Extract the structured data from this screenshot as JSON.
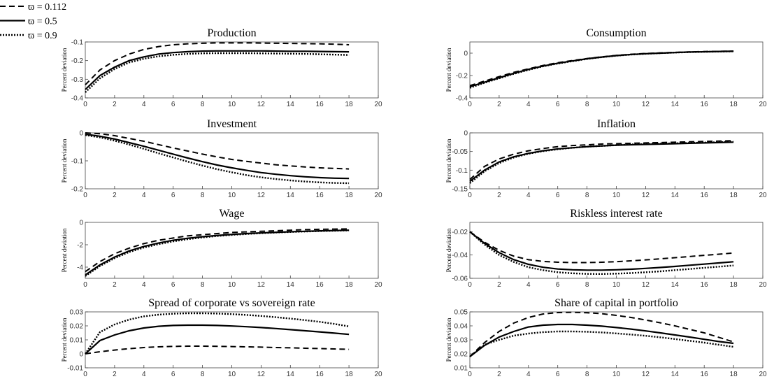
{
  "legend": [
    {
      "label": "ϖ = 0.112",
      "style": "dashed"
    },
    {
      "label": "ϖ = 0.5",
      "style": "solid"
    },
    {
      "label": "ϖ = 0.9",
      "style": "dotted"
    }
  ],
  "chart_data": [
    {
      "type": "line",
      "title": "Production",
      "y_label": "Percent deviation",
      "x": [
        0,
        1,
        2,
        3,
        4,
        5,
        6,
        7,
        8,
        9,
        10,
        11,
        12,
        13,
        14,
        15,
        16,
        17,
        18
      ],
      "xlim": [
        0,
        20
      ],
      "xticks": [
        0,
        2,
        4,
        6,
        8,
        10,
        12,
        14,
        16,
        18,
        20
      ],
      "ylim": [
        -0.4,
        -0.1
      ],
      "yticks": [
        -0.4,
        -0.3,
        -0.2,
        -0.1
      ],
      "series": [
        {
          "style": "dashed",
          "color": "#000000",
          "values": [
            -0.33,
            -0.25,
            -0.2,
            -0.165,
            -0.14,
            -0.125,
            -0.115,
            -0.11,
            -0.107,
            -0.105,
            -0.105,
            -0.105,
            -0.106,
            -0.107,
            -0.108,
            -0.109,
            -0.11,
            -0.112,
            -0.115
          ]
        },
        {
          "style": "solid",
          "color": "#000000",
          "values": [
            -0.355,
            -0.28,
            -0.235,
            -0.2,
            -0.18,
            -0.165,
            -0.157,
            -0.152,
            -0.149,
            -0.148,
            -0.148,
            -0.148,
            -0.148,
            -0.149,
            -0.15,
            -0.15,
            -0.151,
            -0.152,
            -0.153
          ]
        },
        {
          "style": "dotted",
          "color": "#000000",
          "values": [
            -0.37,
            -0.295,
            -0.245,
            -0.21,
            -0.19,
            -0.177,
            -0.169,
            -0.164,
            -0.161,
            -0.16,
            -0.16,
            -0.16,
            -0.161,
            -0.162,
            -0.163,
            -0.164,
            -0.166,
            -0.168,
            -0.17
          ]
        }
      ]
    },
    {
      "type": "line",
      "title": "Consumption",
      "y_label": "Percent deviation",
      "x": [
        0,
        1,
        2,
        3,
        4,
        5,
        6,
        7,
        8,
        9,
        10,
        11,
        12,
        13,
        14,
        15,
        16,
        17,
        18
      ],
      "xlim": [
        0,
        20
      ],
      "xticks": [
        0,
        2,
        4,
        6,
        8,
        10,
        12,
        14,
        16,
        18,
        20
      ],
      "ylim": [
        -0.4,
        0.1
      ],
      "yticks": [
        -0.4,
        -0.2,
        0
      ],
      "series": [
        {
          "style": "dashed",
          "color": "#000000",
          "values": [
            -0.29,
            -0.25,
            -0.21,
            -0.172,
            -0.14,
            -0.11,
            -0.086,
            -0.066,
            -0.048,
            -0.033,
            -0.02,
            -0.01,
            -0.003,
            0.002,
            0.007,
            0.011,
            0.014,
            0.016,
            0.018
          ]
        },
        {
          "style": "solid",
          "color": "#000000",
          "values": [
            -0.3,
            -0.26,
            -0.22,
            -0.18,
            -0.145,
            -0.115,
            -0.09,
            -0.07,
            -0.05,
            -0.035,
            -0.022,
            -0.012,
            -0.005,
            0.0,
            0.005,
            0.01,
            0.012,
            0.015,
            0.017
          ]
        },
        {
          "style": "dotted",
          "color": "#000000",
          "values": [
            -0.31,
            -0.265,
            -0.225,
            -0.185,
            -0.15,
            -0.118,
            -0.093,
            -0.072,
            -0.052,
            -0.036,
            -0.023,
            -0.013,
            -0.006,
            0.0,
            0.005,
            0.009,
            0.012,
            0.014,
            0.016
          ]
        }
      ]
    },
    {
      "type": "line",
      "title": "Investment",
      "y_label": "Percent deviation",
      "x": [
        0,
        1,
        2,
        3,
        4,
        5,
        6,
        7,
        8,
        9,
        10,
        11,
        12,
        13,
        14,
        15,
        16,
        17,
        18
      ],
      "xlim": [
        0,
        20
      ],
      "xticks": [
        0,
        2,
        4,
        6,
        8,
        10,
        12,
        14,
        16,
        18,
        20
      ],
      "ylim": [
        -0.2,
        0
      ],
      "yticks": [
        -0.2,
        -0.1,
        0
      ],
      "series": [
        {
          "style": "dashed",
          "color": "#000000",
          "values": [
            0,
            -0.003,
            -0.01,
            -0.02,
            -0.03,
            -0.042,
            -0.054,
            -0.065,
            -0.076,
            -0.086,
            -0.095,
            -0.102,
            -0.108,
            -0.114,
            -0.118,
            -0.122,
            -0.125,
            -0.127,
            -0.129
          ]
        },
        {
          "style": "solid",
          "color": "#000000",
          "values": [
            -0.005,
            -0.012,
            -0.022,
            -0.035,
            -0.048,
            -0.062,
            -0.076,
            -0.09,
            -0.103,
            -0.115,
            -0.125,
            -0.134,
            -0.142,
            -0.148,
            -0.153,
            -0.157,
            -0.16,
            -0.162,
            -0.163
          ]
        },
        {
          "style": "dotted",
          "color": "#000000",
          "values": [
            -0.008,
            -0.016,
            -0.028,
            -0.042,
            -0.057,
            -0.073,
            -0.088,
            -0.103,
            -0.117,
            -0.13,
            -0.141,
            -0.151,
            -0.159,
            -0.165,
            -0.17,
            -0.174,
            -0.177,
            -0.179,
            -0.18
          ]
        }
      ]
    },
    {
      "type": "line",
      "title": "Inflation",
      "y_label": "Percent deviation",
      "x": [
        0,
        1,
        2,
        3,
        4,
        5,
        6,
        7,
        8,
        9,
        10,
        11,
        12,
        13,
        14,
        15,
        16,
        17,
        18
      ],
      "xlim": [
        0,
        20
      ],
      "xticks": [
        0,
        2,
        4,
        6,
        8,
        10,
        12,
        14,
        16,
        18,
        20
      ],
      "ylim": [
        -0.15,
        0
      ],
      "yticks": [
        -0.15,
        -0.1,
        -0.05,
        0
      ],
      "series": [
        {
          "style": "dashed",
          "color": "#000000",
          "values": [
            -0.125,
            -0.09,
            -0.07,
            -0.057,
            -0.048,
            -0.042,
            -0.037,
            -0.034,
            -0.032,
            -0.03,
            -0.029,
            -0.028,
            -0.027,
            -0.026,
            -0.025,
            -0.024,
            -0.023,
            -0.022,
            -0.021
          ]
        },
        {
          "style": "solid",
          "color": "#000000",
          "values": [
            -0.13,
            -0.1,
            -0.078,
            -0.064,
            -0.055,
            -0.048,
            -0.043,
            -0.04,
            -0.037,
            -0.035,
            -0.033,
            -0.032,
            -0.031,
            -0.03,
            -0.029,
            -0.028,
            -0.027,
            -0.026,
            -0.025
          ]
        },
        {
          "style": "dotted",
          "color": "#000000",
          "values": [
            -0.135,
            -0.103,
            -0.081,
            -0.066,
            -0.056,
            -0.049,
            -0.044,
            -0.04,
            -0.037,
            -0.035,
            -0.033,
            -0.031,
            -0.03,
            -0.029,
            -0.028,
            -0.027,
            -0.026,
            -0.025,
            -0.024
          ]
        }
      ]
    },
    {
      "type": "line",
      "title": "Wage",
      "y_label": "Percent deviation",
      "x": [
        0,
        1,
        2,
        3,
        4,
        5,
        6,
        7,
        8,
        9,
        10,
        11,
        12,
        13,
        14,
        15,
        16,
        17,
        18
      ],
      "xlim": [
        0,
        20
      ],
      "xticks": [
        0,
        2,
        4,
        6,
        8,
        10,
        12,
        14,
        16,
        18,
        20
      ],
      "ylim": [
        -5,
        0
      ],
      "yticks": [
        -4,
        -2,
        0
      ],
      "series": [
        {
          "style": "dashed",
          "color": "#000000",
          "values": [
            -4.4,
            -3.5,
            -2.8,
            -2.3,
            -1.9,
            -1.6,
            -1.4,
            -1.2,
            -1.1,
            -1.0,
            -0.9,
            -0.85,
            -0.8,
            -0.75,
            -0.7,
            -0.65,
            -0.62,
            -0.6,
            -0.58
          ]
        },
        {
          "style": "solid",
          "color": "#000000",
          "values": [
            -4.7,
            -3.8,
            -3.1,
            -2.55,
            -2.15,
            -1.85,
            -1.6,
            -1.42,
            -1.28,
            -1.17,
            -1.08,
            -1.0,
            -0.94,
            -0.89,
            -0.84,
            -0.8,
            -0.76,
            -0.73,
            -0.7
          ]
        },
        {
          "style": "dotted",
          "color": "#000000",
          "values": [
            -4.8,
            -3.9,
            -3.2,
            -2.65,
            -2.25,
            -1.95,
            -1.7,
            -1.5,
            -1.35,
            -1.22,
            -1.12,
            -1.04,
            -0.97,
            -0.91,
            -0.86,
            -0.82,
            -0.78,
            -0.75,
            -0.72
          ]
        }
      ]
    },
    {
      "type": "line",
      "title": "Riskless interest rate",
      "y_label": "Percent deviation",
      "x": [
        0,
        1,
        2,
        3,
        4,
        5,
        6,
        7,
        8,
        9,
        10,
        11,
        12,
        13,
        14,
        15,
        16,
        17,
        18
      ],
      "xlim": [
        0,
        20
      ],
      "xticks": [
        0,
        2,
        4,
        6,
        8,
        10,
        12,
        14,
        16,
        18,
        20
      ],
      "ylim": [
        -0.06,
        -0.012
      ],
      "yticks": [
        -0.06,
        -0.04,
        -0.02
      ],
      "series": [
        {
          "style": "dashed",
          "color": "#000000",
          "values": [
            -0.02,
            -0.029,
            -0.036,
            -0.041,
            -0.044,
            -0.0455,
            -0.0462,
            -0.0465,
            -0.0465,
            -0.0462,
            -0.0457,
            -0.045,
            -0.0442,
            -0.0433,
            -0.0423,
            -0.0413,
            -0.0403,
            -0.0393,
            -0.0383
          ]
        },
        {
          "style": "solid",
          "color": "#000000",
          "values": [
            -0.02,
            -0.03,
            -0.038,
            -0.044,
            -0.048,
            -0.0505,
            -0.052,
            -0.0527,
            -0.053,
            -0.053,
            -0.0527,
            -0.0522,
            -0.0515,
            -0.0507,
            -0.0498,
            -0.0488,
            -0.0478,
            -0.0468,
            -0.0458
          ]
        },
        {
          "style": "dotted",
          "color": "#000000",
          "values": [
            -0.02,
            -0.031,
            -0.04,
            -0.046,
            -0.0505,
            -0.053,
            -0.0548,
            -0.0557,
            -0.0562,
            -0.0563,
            -0.056,
            -0.0555,
            -0.0548,
            -0.054,
            -0.053,
            -0.052,
            -0.051,
            -0.05,
            -0.049
          ]
        }
      ]
    },
    {
      "type": "line",
      "title": "Spread of corporate vs sovereign rate",
      "y_label": "Percent deviation",
      "x": [
        0,
        1,
        2,
        3,
        4,
        5,
        6,
        7,
        8,
        9,
        10,
        11,
        12,
        13,
        14,
        15,
        16,
        17,
        18
      ],
      "xlim": [
        0,
        20
      ],
      "xticks": [
        0,
        2,
        4,
        6,
        8,
        10,
        12,
        14,
        16,
        18,
        20
      ],
      "ylim": [
        -0.01,
        0.03
      ],
      "yticks": [
        -0.01,
        0,
        0.01,
        0.02,
        0.03
      ],
      "series": [
        {
          "style": "dashed",
          "color": "#000000",
          "values": [
            0,
            0.0015,
            0.0027,
            0.0037,
            0.0045,
            0.005,
            0.0053,
            0.0055,
            0.0055,
            0.0054,
            0.0052,
            0.005,
            0.0048,
            0.0045,
            0.0043,
            0.004,
            0.0038,
            0.0035,
            0.0032
          ]
        },
        {
          "style": "solid",
          "color": "#000000",
          "values": [
            0,
            0.0095,
            0.0135,
            0.0165,
            0.0185,
            0.0197,
            0.0203,
            0.0205,
            0.0205,
            0.0203,
            0.0199,
            0.0194,
            0.0188,
            0.0181,
            0.0173,
            0.0165,
            0.0157,
            0.0148,
            0.0139
          ]
        },
        {
          "style": "dotted",
          "color": "#000000",
          "values": [
            0,
            0.0155,
            0.021,
            0.0245,
            0.0268,
            0.028,
            0.0287,
            0.029,
            0.029,
            0.0288,
            0.0284,
            0.0278,
            0.0271,
            0.0262,
            0.0252,
            0.0241,
            0.0229,
            0.0214,
            0.0196
          ]
        }
      ]
    },
    {
      "type": "line",
      "title": "Share of capital in portfolio",
      "y_label": "Percent deviation",
      "x": [
        0,
        1,
        2,
        3,
        4,
        5,
        6,
        7,
        8,
        9,
        10,
        11,
        12,
        13,
        14,
        15,
        16,
        17,
        18
      ],
      "xlim": [
        0,
        20
      ],
      "xticks": [
        0,
        2,
        4,
        6,
        8,
        10,
        12,
        14,
        16,
        18,
        20
      ],
      "ylim": [
        0.01,
        0.05
      ],
      "yticks": [
        0.01,
        0.02,
        0.03,
        0.04,
        0.05
      ],
      "series": [
        {
          "style": "dashed",
          "color": "#000000",
          "values": [
            0.018,
            0.028,
            0.036,
            0.042,
            0.046,
            0.0485,
            0.0495,
            0.0497,
            0.0494,
            0.0487,
            0.0475,
            0.046,
            0.0442,
            0.0422,
            0.04,
            0.0375,
            0.035,
            0.0318,
            0.0285
          ]
        },
        {
          "style": "solid",
          "color": "#000000",
          "values": [
            0.018,
            0.026,
            0.032,
            0.036,
            0.0392,
            0.0405,
            0.041,
            0.041,
            0.0405,
            0.0398,
            0.0388,
            0.0377,
            0.0364,
            0.035,
            0.0335,
            0.032,
            0.0304,
            0.0288,
            0.0275
          ]
        },
        {
          "style": "dotted",
          "color": "#000000",
          "values": [
            0.018,
            0.0265,
            0.03,
            0.033,
            0.0345,
            0.0355,
            0.036,
            0.036,
            0.0358,
            0.0353,
            0.0346,
            0.0338,
            0.0329,
            0.0318,
            0.0306,
            0.0293,
            0.028,
            0.0265,
            0.025
          ]
        }
      ]
    }
  ]
}
